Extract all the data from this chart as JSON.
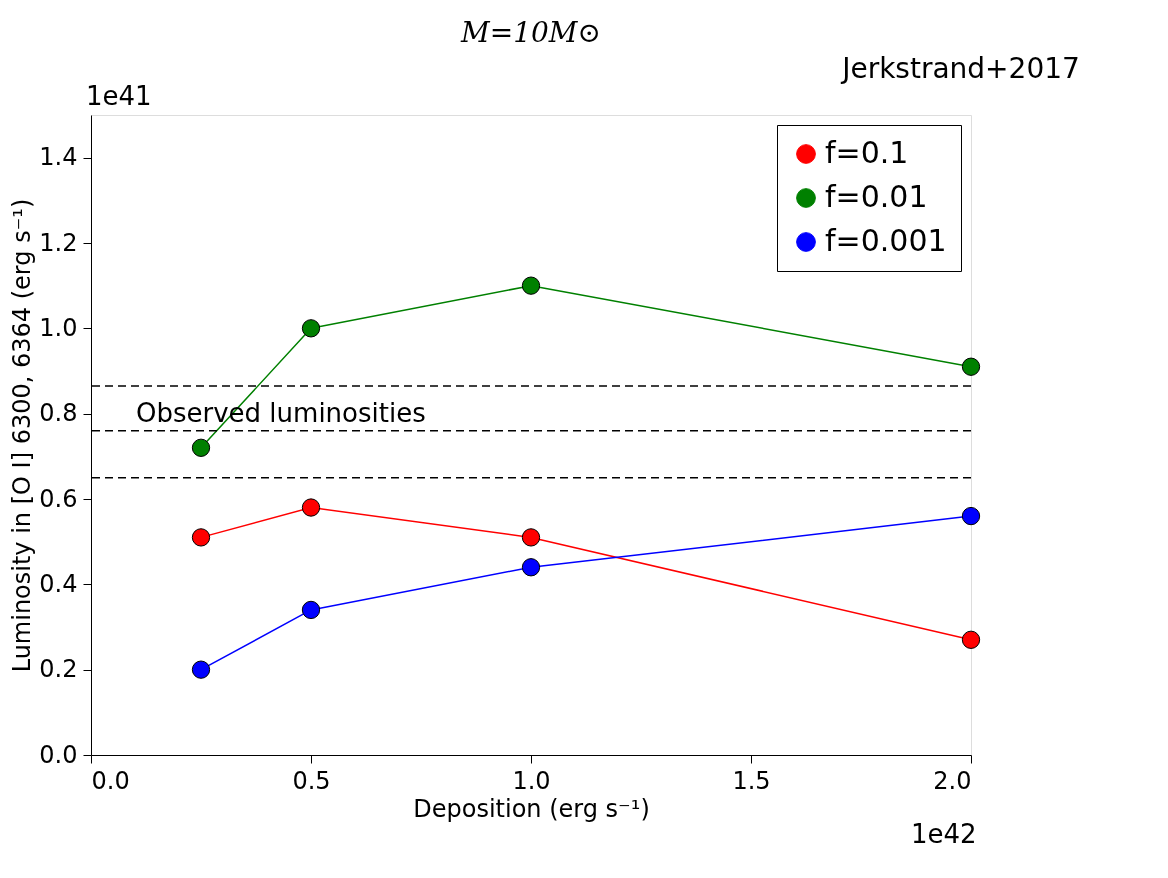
{
  "chart_data": {
    "type": "line",
    "title": "M=10M⊙",
    "xlabel": "Deposition (erg s⁻¹)",
    "ylabel": "Luminosity in [O I] 6300, 6364 (erg s⁻¹)",
    "x": [
      0.25,
      0.5,
      1.0,
      2.0
    ],
    "series": [
      {
        "name": "f=0.1",
        "color": "#ff0000",
        "values": [
          0.51,
          0.58,
          0.51,
          0.27
        ]
      },
      {
        "name": "f=0.01",
        "color": "#008000",
        "values": [
          0.72,
          1.0,
          1.1,
          0.91
        ]
      },
      {
        "name": "f=0.001",
        "color": "#0000ff",
        "values": [
          0.2,
          0.34,
          0.44,
          0.56
        ]
      }
    ],
    "xlim": [
      0.0,
      2.0
    ],
    "xticks": [
      {
        "value": 0,
        "label": "0.0"
      },
      0.5,
      {
        "value": 1,
        "label": "1.0"
      },
      1.5,
      {
        "value": 2,
        "label": "2.0"
      }
    ],
    "ylim": [
      0.0,
      1.5
    ],
    "yticks": [
      {
        "value": 0,
        "label": "0.0"
      },
      0.2,
      0.4,
      0.6,
      0.8,
      {
        "value": 1,
        "label": "1.0"
      },
      1.2,
      1.4
    ],
    "ref_lines": [
      {
        "axis": "y",
        "value": 0.865,
        "color": "#000000",
        "line_style": "dashed"
      },
      {
        "axis": "y",
        "value": 0.76,
        "color": "#000000",
        "line_style": "dashed"
      },
      {
        "axis": "y",
        "value": 0.65,
        "color": "#000000",
        "line_style": "dashed"
      }
    ],
    "annotations": [
      "Observed luminosities",
      "1e41",
      "1e42",
      "Jerkstrand+2017"
    ],
    "marker": "circle",
    "line_style": "solid",
    "grid": false,
    "legend": "top right"
  }
}
